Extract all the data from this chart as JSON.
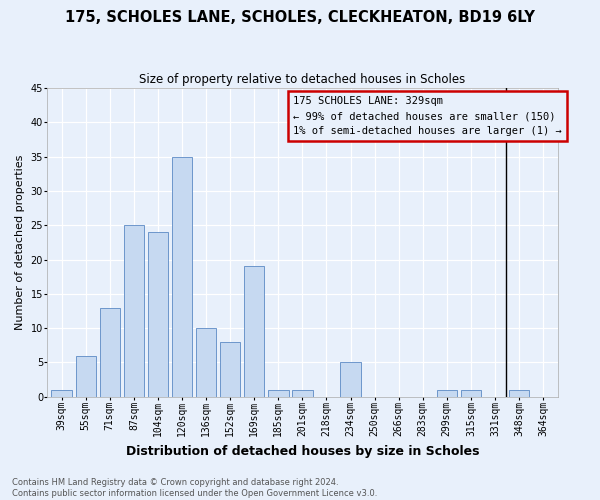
{
  "title": "175, SCHOLES LANE, SCHOLES, CLECKHEATON, BD19 6LY",
  "subtitle": "Size of property relative to detached houses in Scholes",
  "xlabel": "Distribution of detached houses by size in Scholes",
  "ylabel": "Number of detached properties",
  "footer1": "Contains HM Land Registry data © Crown copyright and database right 2024.",
  "footer2": "Contains public sector information licensed under the Open Government Licence v3.0.",
  "bar_labels": [
    "39sqm",
    "55sqm",
    "71sqm",
    "87sqm",
    "104sqm",
    "120sqm",
    "136sqm",
    "152sqm",
    "169sqm",
    "185sqm",
    "201sqm",
    "218sqm",
    "234sqm",
    "250sqm",
    "266sqm",
    "283sqm",
    "299sqm",
    "315sqm",
    "331sqm",
    "348sqm",
    "364sqm"
  ],
  "bar_values": [
    1,
    6,
    13,
    25,
    24,
    35,
    10,
    8,
    19,
    1,
    1,
    0,
    5,
    0,
    0,
    0,
    1,
    1,
    0,
    1,
    0
  ],
  "bar_color": "#c6d9f1",
  "bar_edge_color": "#5b8ac5",
  "background_color": "#e8f0fb",
  "ylim_min": 0,
  "ylim_max": 45,
  "yticks": [
    0,
    5,
    10,
    15,
    20,
    25,
    30,
    35,
    40,
    45
  ],
  "property_label": "175 SCHOLES LANE: 329sqm",
  "annotation_line1": "← 99% of detached houses are smaller (150)",
  "annotation_line2": "1% of semi-detached houses are larger (1) →",
  "vline_color": "#000000",
  "vline_x_index": 18.45,
  "annotation_box_edgecolor": "#cc0000",
  "title_fontsize": 10.5,
  "subtitle_fontsize": 8.5,
  "xlabel_fontsize": 9,
  "ylabel_fontsize": 8,
  "tick_fontsize": 7,
  "annotation_fontsize": 7.5,
  "footer_fontsize": 6
}
